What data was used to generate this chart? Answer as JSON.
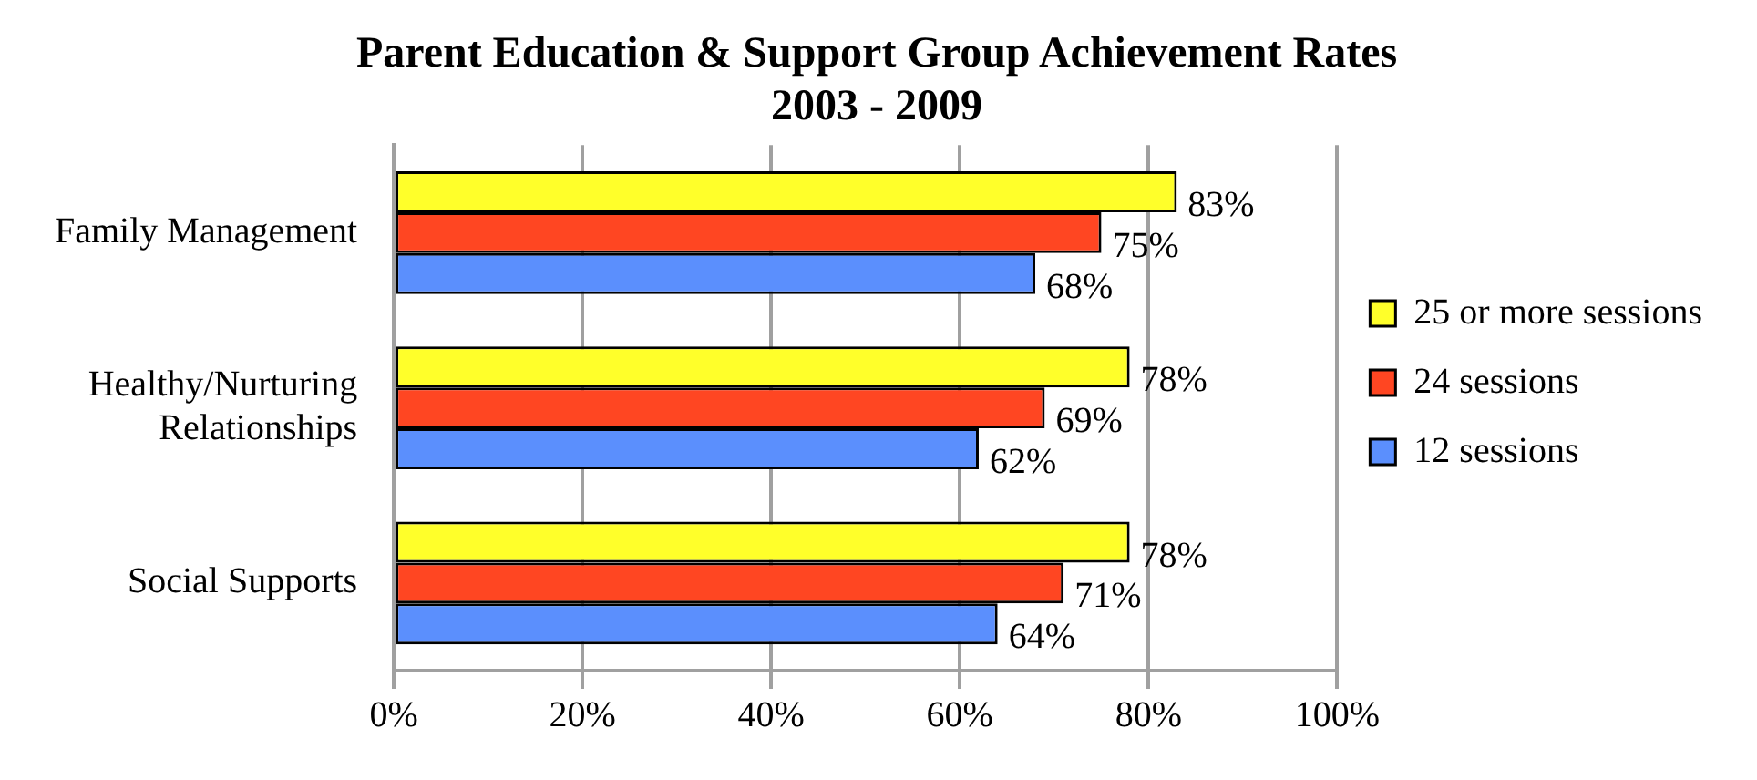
{
  "chart_data": {
    "type": "bar",
    "orientation": "horizontal",
    "title": "Parent Education & Support Group Achievement Rates 2003 - 2009",
    "categories": [
      "Family Management",
      "Healthy/Nurturing Relationships",
      "Social Supports"
    ],
    "series": [
      {
        "name": "25 or more sessions",
        "color": "#ffff2a",
        "values": [
          83,
          78,
          78
        ],
        "value_labels": [
          "83%",
          "78%",
          "78%"
        ]
      },
      {
        "name": "24 sessions",
        "color": "#ff4622",
        "values": [
          75,
          69,
          71
        ],
        "value_labels": [
          "75%",
          "69%",
          "71%"
        ]
      },
      {
        "name": "12 sessions",
        "color": "#5b8ffd",
        "values": [
          68,
          62,
          64
        ],
        "value_labels": [
          "68%",
          "62%",
          "64%"
        ]
      }
    ],
    "xlim": [
      0,
      100
    ],
    "xticks": [
      {
        "value": 0,
        "label": "0%"
      },
      {
        "value": 20,
        "label": "20%"
      },
      {
        "value": 40,
        "label": "40%"
      },
      {
        "value": 60,
        "label": "60%"
      },
      {
        "value": 80,
        "label": "80%"
      },
      {
        "value": 100,
        "label": "100%"
      }
    ],
    "grid": "x",
    "legend": "right"
  }
}
